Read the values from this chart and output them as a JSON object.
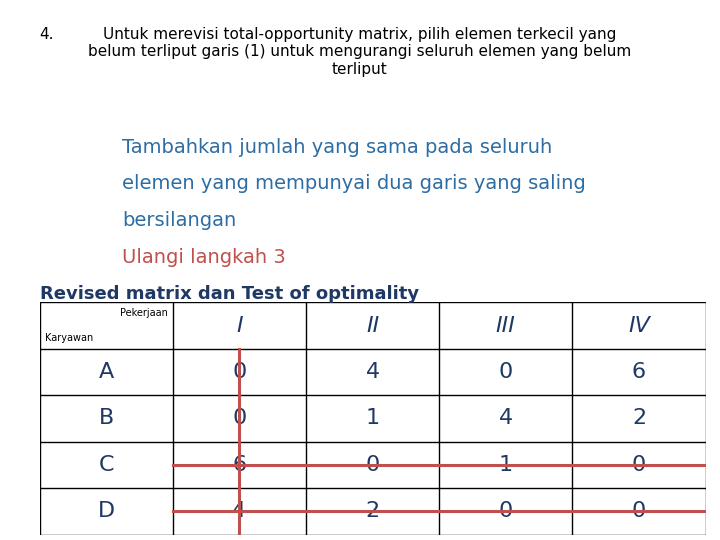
{
  "title_number": "4.",
  "title_text": "Untuk merevisi total-opportunity matrix, pilih elemen terkecil yang\nbelum terliput garis (1) untuk mengurangi seluruh elemen yang belum\nterliput",
  "subtitle1_line1": "Tambahkan jumlah yang sama pada seluruh",
  "subtitle1_line2": "elemen yang mempunyai dua garis yang saling",
  "subtitle1_line3": "bersilangan",
  "subtitle2": "Ulangi langkah 3",
  "subtitle3": "Revised matrix dan Test of optimality",
  "subtitle1_color": "#2E6DA4",
  "subtitle2_color": "#C0504D",
  "subtitle3_color": "#1F3864",
  "col_headers": [
    "I",
    "II",
    "III",
    "IV"
  ],
  "row_headers": [
    "A",
    "B",
    "C",
    "D"
  ],
  "matrix": [
    [
      0,
      4,
      0,
      6
    ],
    [
      0,
      1,
      4,
      2
    ],
    [
      6,
      0,
      1,
      0
    ],
    [
      4,
      2,
      0,
      0
    ]
  ],
  "col_header_color": "#1F3864",
  "row_header_color": "#1F3864",
  "data_color": "#1F3864",
  "highlight_rows": [
    2,
    3
  ],
  "highlight_col": 0,
  "line_color": "#C0504D",
  "bg_color": "#FFFFFF"
}
